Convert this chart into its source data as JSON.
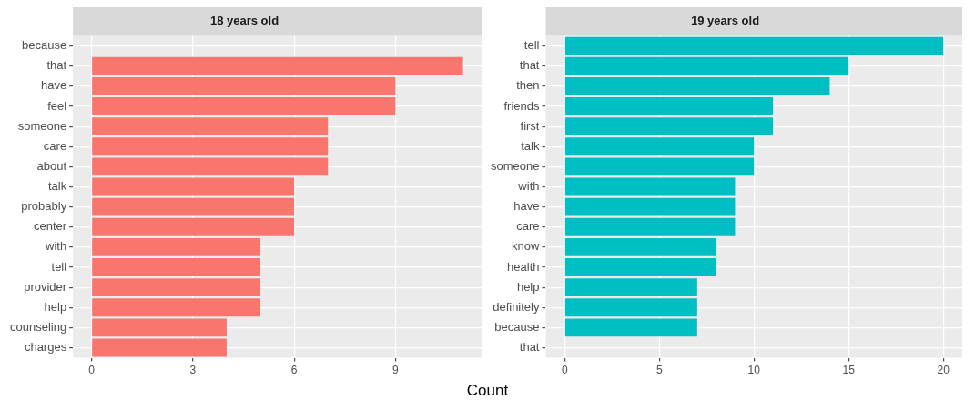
{
  "chart_data": [
    {
      "type": "bar",
      "orientation": "horizontal",
      "title": "18 years old",
      "xlabel": "Count",
      "categories": [
        "because",
        "that",
        "have",
        "feel",
        "someone",
        "care",
        "about",
        "talk",
        "probably",
        "center",
        "with",
        "tell",
        "provider",
        "help",
        "counseling",
        "charges"
      ],
      "values": [
        null,
        11,
        9,
        9,
        7,
        7,
        7,
        6,
        6,
        6,
        5,
        5,
        5,
        5,
        4,
        4
      ],
      "color": "#f8766d",
      "xlim": [
        -0.55,
        11.55
      ],
      "xticks": [
        0,
        3,
        6,
        9
      ],
      "grid": true,
      "legend": false
    },
    {
      "type": "bar",
      "orientation": "horizontal",
      "title": "19 years old",
      "categories": [
        "tell",
        "that",
        "then",
        "friends",
        "first",
        "talk",
        "someone",
        "with",
        "have",
        "care",
        "know",
        "health",
        "help",
        "definitely",
        "because",
        "that"
      ],
      "values": [
        20,
        15,
        14,
        11,
        11,
        10,
        10,
        9,
        9,
        9,
        8,
        8,
        7,
        7,
        7,
        null
      ],
      "color": "#00bfc4",
      "xlim": [
        -1,
        21
      ],
      "xticks": [
        0,
        5,
        10,
        15,
        20
      ],
      "grid": true,
      "legend": false
    }
  ]
}
